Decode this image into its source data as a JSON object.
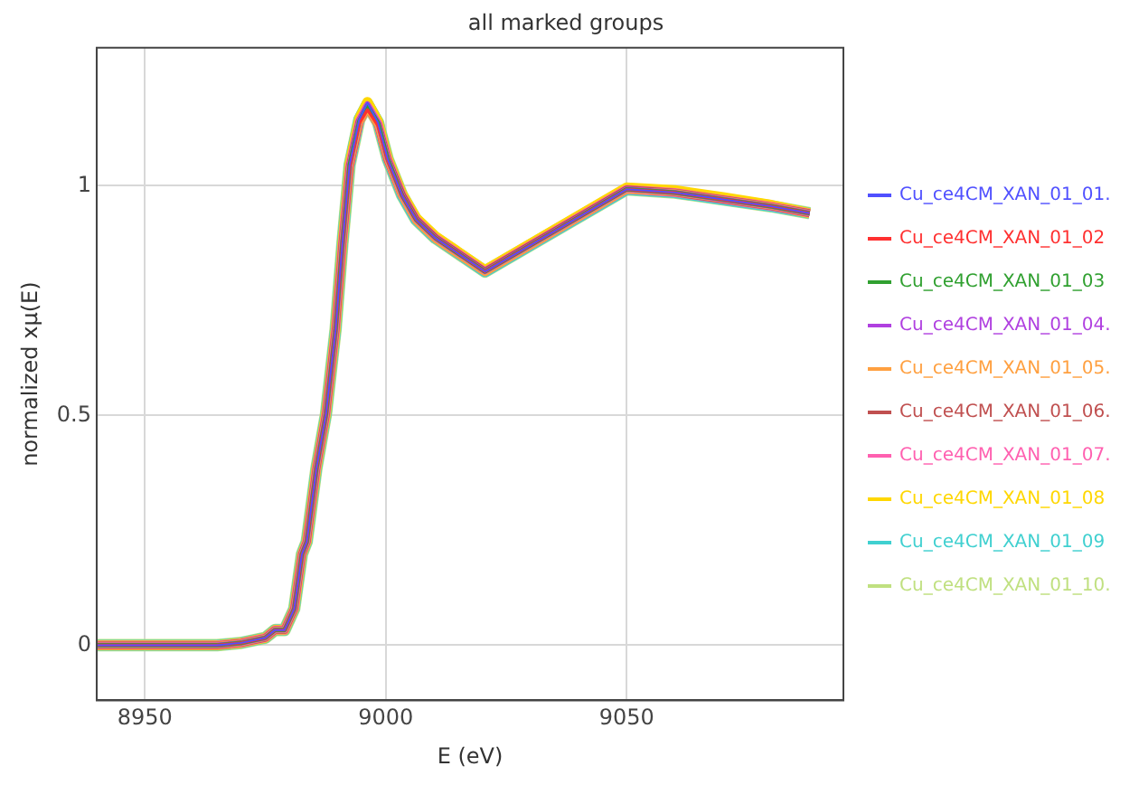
{
  "chart_data": {
    "type": "line",
    "title": "all marked groups",
    "xlabel": "E (eV)",
    "ylabel": "normalized xμ(E)",
    "x": [
      8940,
      8965,
      8970,
      8975,
      8977,
      8979,
      8981,
      8982.6,
      8983.6,
      8985.6,
      8987.6,
      8989.6,
      8991,
      8992.5,
      8994.5,
      8996.2,
      8998.4,
      9000.4,
      9003.4,
      9006.3,
      9010.3,
      9020.6,
      9050,
      9060,
      9070,
      9080,
      9088
    ],
    "xlim": [
      8940,
      9095
    ],
    "xticks": [
      8950,
      9000,
      9050
    ],
    "ylim": [
      -0.12,
      1.3
    ],
    "yticks": [
      0,
      0.5,
      1
    ],
    "grid": true,
    "legend": "right",
    "marker": "none",
    "line_style": "solid",
    "series": [
      {
        "name": "Cu_ce4CM_XAN_01_01.",
        "color": "#5050ff",
        "values": [
          0,
          0,
          0.005,
          0.016,
          0.033,
          0.033,
          0.079,
          0.198,
          0.225,
          0.384,
          0.503,
          0.688,
          0.873,
          1.045,
          1.144,
          1.18,
          1.137,
          1.058,
          0.979,
          0.926,
          0.886,
          0.813,
          0.992,
          0.985,
          0.97,
          0.955,
          0.94
        ]
      },
      {
        "name": "Cu_ce4CM_XAN_01_02",
        "color": "#ff3030",
        "values": [
          0,
          0,
          0.005,
          0.016,
          0.033,
          0.033,
          0.079,
          0.198,
          0.225,
          0.384,
          0.503,
          0.688,
          0.873,
          1.04,
          1.135,
          1.165,
          1.13,
          1.055,
          0.979,
          0.926,
          0.886,
          0.813,
          0.992,
          0.985,
          0.97,
          0.955,
          0.94
        ]
      },
      {
        "name": "Cu_ce4CM_XAN_01_03",
        "color": "#30a030",
        "values": [
          0,
          0,
          0.005,
          0.016,
          0.033,
          0.033,
          0.079,
          0.198,
          0.225,
          0.384,
          0.503,
          0.688,
          0.873,
          1.045,
          1.14,
          1.175,
          1.137,
          1.058,
          0.979,
          0.926,
          0.886,
          0.813,
          0.992,
          0.985,
          0.97,
          0.955,
          0.94
        ]
      },
      {
        "name": "Cu_ce4CM_XAN_01_04.",
        "color": "#b040e0",
        "values": [
          0,
          0,
          0.005,
          0.016,
          0.033,
          0.033,
          0.079,
          0.198,
          0.225,
          0.384,
          0.503,
          0.688,
          0.873,
          1.045,
          1.142,
          1.178,
          1.137,
          1.058,
          0.979,
          0.926,
          0.886,
          0.813,
          0.992,
          0.985,
          0.97,
          0.955,
          0.94
        ]
      },
      {
        "name": "Cu_ce4CM_XAN_01_05.",
        "color": "#ffa040",
        "values": [
          0,
          0,
          0.005,
          0.016,
          0.033,
          0.033,
          0.079,
          0.198,
          0.225,
          0.384,
          0.503,
          0.688,
          0.873,
          1.04,
          1.136,
          1.168,
          1.13,
          1.055,
          0.975,
          0.922,
          0.882,
          0.81,
          0.99,
          0.985,
          0.97,
          0.955,
          0.94
        ]
      },
      {
        "name": "Cu_ce4CM_XAN_01_06.",
        "color": "#c05050",
        "values": [
          0,
          0,
          0.005,
          0.016,
          0.033,
          0.033,
          0.079,
          0.198,
          0.225,
          0.384,
          0.503,
          0.688,
          0.873,
          1.04,
          1.138,
          1.17,
          1.132,
          1.056,
          0.979,
          0.926,
          0.886,
          0.813,
          0.992,
          0.985,
          0.97,
          0.955,
          0.94
        ]
      },
      {
        "name": "Cu_ce4CM_XAN_01_07.",
        "color": "#ff60b0",
        "values": [
          0,
          0,
          0.005,
          0.016,
          0.033,
          0.033,
          0.079,
          0.198,
          0.225,
          0.384,
          0.503,
          0.688,
          0.873,
          1.042,
          1.139,
          1.172,
          1.134,
          1.057,
          0.979,
          0.926,
          0.886,
          0.813,
          0.992,
          0.985,
          0.97,
          0.955,
          0.94
        ]
      },
      {
        "name": "Cu_ce4CM_XAN_01_08",
        "color": "#ffd700",
        "values": [
          0,
          0,
          0.005,
          0.016,
          0.033,
          0.033,
          0.079,
          0.198,
          0.225,
          0.384,
          0.503,
          0.688,
          0.873,
          1.048,
          1.146,
          1.182,
          1.14,
          1.06,
          0.982,
          0.93,
          0.89,
          0.816,
          0.996,
          0.99,
          0.975,
          0.958,
          0.94
        ]
      },
      {
        "name": "Cu_ce4CM_XAN_01_09",
        "color": "#40d0d0",
        "values": [
          0,
          0,
          0.005,
          0.016,
          0.033,
          0.033,
          0.079,
          0.198,
          0.225,
          0.384,
          0.503,
          0.688,
          0.873,
          1.046,
          1.145,
          1.179,
          1.138,
          1.058,
          0.979,
          0.926,
          0.886,
          0.813,
          0.992,
          0.985,
          0.97,
          0.955,
          0.94
        ]
      },
      {
        "name": "Cu_ce4CM_XAN_01_10.",
        "color": "#c0e080",
        "values": [
          0,
          0,
          0.005,
          0.016,
          0.033,
          0.033,
          0.079,
          0.198,
          0.225,
          0.384,
          0.503,
          0.688,
          0.873,
          1.045,
          1.143,
          1.176,
          1.137,
          1.058,
          0.979,
          0.926,
          0.886,
          0.813,
          0.992,
          0.985,
          0.97,
          0.955,
          0.94
        ]
      }
    ]
  }
}
